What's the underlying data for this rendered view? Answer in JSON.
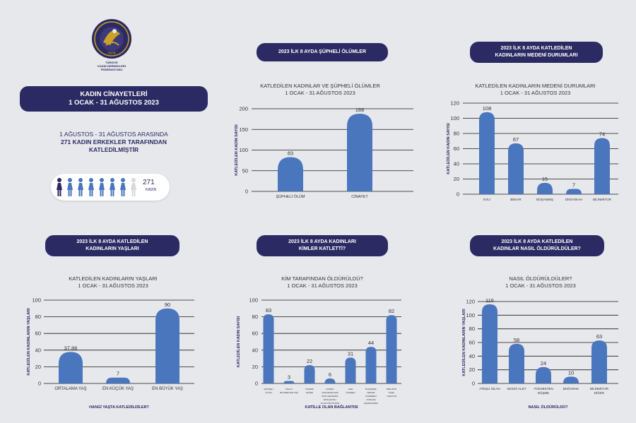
{
  "logo": {
    "line1": "TÜRKİYE",
    "line2": "KADIN DERNEKLERİ",
    "line3": "FEDERASYONU",
    "year": "1976"
  },
  "main_title": {
    "line1": "KADIN CİNAYETLERİ",
    "line2": "1 OCAK - 31 AĞUSTOS 2023"
  },
  "headline": {
    "line1": "1 AĞUSTOS - 31 AĞUSTOS ARASINDA",
    "line2": "271 KADIN ERKEKLER TARAFINDAN",
    "line3": "KATLEDİLMİŞTİR"
  },
  "figures": {
    "count": "271",
    "unit": "KADIN",
    "icons": 8,
    "highlight": 1,
    "filled": 7
  },
  "panels": {
    "p1": {
      "pill": [
        "2023 İLK 8 AYDA ŞÜPHELİ ÖLÜMLER"
      ],
      "title": [
        "KATLEDİLEN KADINLAR VE ŞÜPHELİ ÖLÜMLER",
        "1 OCAK - 31 AĞUSTOS 2023"
      ]
    },
    "p2": {
      "pill": [
        "2023 İLK 8 AYDA KATLEDİLEN",
        "KADINLARIN MEDENİ DURUMLARI"
      ],
      "title": [
        "KATLEDİLEN KADINLARIN MEDENİ DURUMLARI",
        "1 OCAK - 31 AĞUSTOS 2023"
      ]
    },
    "p3": {
      "pill": [
        "2023 İLK 8 AYDA  KATLEDİLEN",
        "KADINLARIN YAŞLARI"
      ],
      "title": [
        "KATLEDİLEN KADINLARIN YAŞLARI",
        "1 OCAK - 31 AĞUSTOS 2023"
      ]
    },
    "p4": {
      "pill": [
        "2023 İLK 8 AYDA KADINLARI",
        "KİMLER KATLETTİ?"
      ],
      "title": [
        "KİM TARAFINDAN ÖLDÜRÜLDÜ?",
        "1 OCAK - 31 AĞUSTOS 2023"
      ]
    },
    "p5": {
      "pill": [
        "2023 İLK 8 AYDA KATLEDİLEN",
        "KADINLAR NASIL ÖLDÜRÜLDÜLER?"
      ],
      "title": [
        "NASIL ÖLDÜRÜLDÜLER?",
        "1 OCAK - 31 AĞUSTOS 2023"
      ]
    }
  },
  "colors": {
    "bar": "#4a76bd",
    "grid": "#1a1a1a",
    "pill": "#2b2a63",
    "figure_dark": "#2b2a63",
    "figure_mid": "#4a76bd",
    "figure_light": "#d8d8d8"
  },
  "chart_data": [
    {
      "id": "p1",
      "type": "bar",
      "categories": [
        "ŞÜPHELİ ÖLÜM",
        "CİNAYET"
      ],
      "values": [
        83,
        188
      ],
      "ylabel": "KATLEDİLEN KADIN SAYISI",
      "xlabel": "",
      "ylim": [
        0,
        200
      ],
      "yticks": [
        0,
        50,
        100,
        150,
        200
      ],
      "grid": true
    },
    {
      "id": "p2",
      "type": "bar",
      "categories": [
        "EVLİ",
        "BEKAR",
        "BOŞANMIŞ",
        "DİNİ NİKAH",
        "BİLİNMİYOR"
      ],
      "values": [
        108,
        67,
        15,
        7,
        74
      ],
      "ylabel": "KATLEDİLEN KADIN SAYISI",
      "xlabel": "",
      "ylim": [
        0,
        120
      ],
      "yticks": [
        0,
        20,
        40,
        60,
        80,
        100,
        120
      ],
      "grid": true
    },
    {
      "id": "p3",
      "type": "bar",
      "categories": [
        "ORTALAMA YAŞ",
        "EN KÜÇÜK YAŞ",
        "EN BÜYÜK YAŞ"
      ],
      "values": [
        37.86,
        7,
        90
      ],
      "value_labels": [
        "37,86",
        "7",
        "90"
      ],
      "ylabel": "KATLEDİLEN KADINLARIN YAŞLARI",
      "xlabel": "HANGİ YAŞTA KATLEDİLDİLER?",
      "ylim": [
        0,
        100
      ],
      "yticks": [
        0,
        20,
        40,
        60,
        80,
        100
      ],
      "grid": true
    },
    {
      "id": "p4",
      "type": "bar",
      "categories": [
        [
          "ŞÜPHELİ",
          "ÖLÜM"
        ],
        [
          "KNA-Ö",
          "BİLİNMEYEN KİŞİ"
        ],
        [
          "TANIDIK",
          "DİĞER"
        ],
        [
          "KOMŞU",
          "ARKADAŞIYMIŞ",
          "İKİSİ ARASINDA",
          "BAĞLANTILI",
          "OLAN KİŞİ ÖLDÜR"
        ],
        [
          "AİLE",
          "İÇİNDEN"
        ],
        [
          "BOŞANMA",
          "DEVAM",
          "ETMEDEN",
          "AYRILMA",
          "AŞAMASINDA"
        ],
        [
          "BİRLİKTE",
          "İLİŞKİ",
          "YAŞAYAN"
        ]
      ],
      "values": [
        83,
        3,
        22,
        6,
        31,
        44,
        82
      ],
      "ylabel": "KATLEDİLEN KADIN SAYISI",
      "xlabel": "KATİLLE OLAN BAĞLANTISI",
      "ylim": [
        0,
        100
      ],
      "yticks": [
        0,
        20,
        40,
        60,
        80,
        100
      ],
      "grid": true
    },
    {
      "id": "p5",
      "type": "bar",
      "categories": [
        [
          "ATEŞLİ SİLAH"
        ],
        [
          "KESİCİ ALET"
        ],
        [
          "YÜKSEKTEN",
          "DÜŞME"
        ],
        [
          "BOĞARAK"
        ],
        [
          "BİLİNMİYOR",
          "DİĞER"
        ]
      ],
      "values": [
        116,
        58,
        24,
        10,
        63
      ],
      "ylabel": "KATLEDİLEN KADINLARIN YAŞLARI",
      "xlabel": "NASIL ÖLDÜRÜLDÜ?",
      "ylim": [
        0,
        120
      ],
      "yticks": [
        0,
        20,
        40,
        60,
        80,
        100,
        120
      ],
      "grid": true
    }
  ]
}
